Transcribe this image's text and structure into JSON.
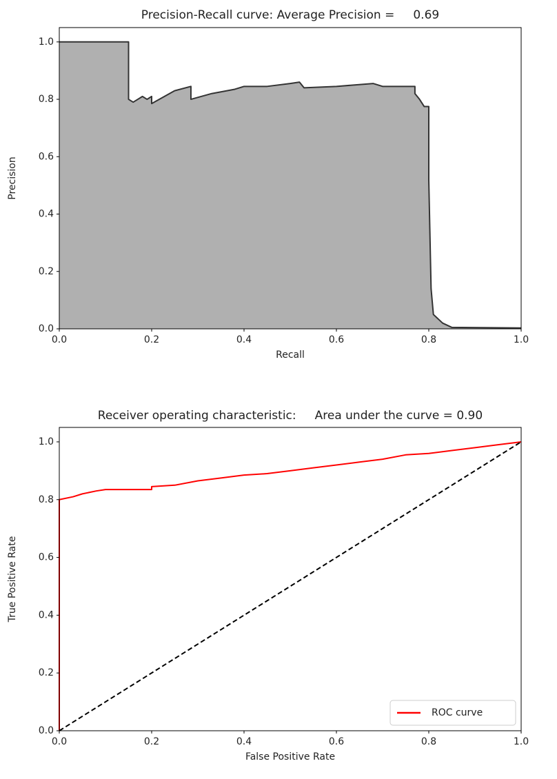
{
  "chart_data": [
    {
      "type": "area",
      "title": "Precision-Recall curve: Average Precision =     0.69",
      "xlabel": "Recall",
      "ylabel": "Precision",
      "xlim": [
        0,
        1
      ],
      "ylim": [
        0,
        1.05
      ],
      "xticks": [
        {
          "value": 0,
          "label": "0.0"
        },
        {
          "value": 0.2,
          "label": "0.2"
        },
        {
          "value": 0.4,
          "label": "0.4"
        },
        {
          "value": 0.6,
          "label": "0.6"
        },
        {
          "value": 0.8,
          "label": "0.8"
        },
        {
          "value": 1,
          "label": "1.0"
        }
      ],
      "yticks": [
        {
          "value": 0,
          "label": "0.0"
        },
        {
          "value": 0.2,
          "label": "0.2"
        },
        {
          "value": 0.4,
          "label": "0.4"
        },
        {
          "value": 0.6,
          "label": "0.6"
        },
        {
          "value": 0.8,
          "label": "0.8"
        },
        {
          "value": 1,
          "label": "1.0"
        }
      ],
      "series": [
        {
          "color": "#333333",
          "fill": "#b0b0b0",
          "x": [
            0,
            0.15,
            0.15,
            0.16,
            0.17,
            0.18,
            0.19,
            0.2,
            0.2,
            0.25,
            0.285,
            0.285,
            0.33,
            0.38,
            0.4,
            0.45,
            0.5,
            0.52,
            0.53,
            0.6,
            0.68,
            0.7,
            0.77,
            0.77,
            0.78,
            0.79,
            0.8,
            0.8,
            0.805,
            0.81,
            0.83,
            0.85,
            1.0
          ],
          "values": [
            1.0,
            1.0,
            0.8,
            0.79,
            0.8,
            0.81,
            0.8,
            0.81,
            0.785,
            0.83,
            0.845,
            0.8,
            0.82,
            0.835,
            0.845,
            0.845,
            0.855,
            0.86,
            0.84,
            0.845,
            0.855,
            0.845,
            0.845,
            0.82,
            0.8,
            0.775,
            0.775,
            0.52,
            0.14,
            0.05,
            0.02,
            0.005,
            0.003
          ]
        }
      ]
    },
    {
      "type": "line",
      "title": "Receiver operating characteristic:     Area under the curve = 0.90",
      "xlabel": "False Positive Rate",
      "ylabel": "True Positive Rate",
      "xlim": [
        0,
        1
      ],
      "ylim": [
        0,
        1.05
      ],
      "xticks": [
        {
          "value": 0,
          "label": "0.0"
        },
        {
          "value": 0.2,
          "label": "0.2"
        },
        {
          "value": 0.4,
          "label": "0.4"
        },
        {
          "value": 0.6,
          "label": "0.6"
        },
        {
          "value": 0.8,
          "label": "0.8"
        },
        {
          "value": 1,
          "label": "1.0"
        }
      ],
      "yticks": [
        {
          "value": 0,
          "label": "0.0"
        },
        {
          "value": 0.2,
          "label": "0.2"
        },
        {
          "value": 0.4,
          "label": "0.4"
        },
        {
          "value": 0.6,
          "label": "0.6"
        },
        {
          "value": 0.8,
          "label": "0.8"
        },
        {
          "value": 1,
          "label": "1.0"
        }
      ],
      "legend": "lower right",
      "series": [
        {
          "name": "ROC curve",
          "color": "#ff0000",
          "x": [
            0,
            0,
            0.03,
            0.05,
            0.08,
            0.1,
            0.2,
            0.2,
            0.25,
            0.3,
            0.35,
            0.4,
            0.45,
            0.5,
            0.55,
            0.6,
            0.65,
            0.7,
            0.75,
            0.8,
            0.85,
            0.9,
            0.95,
            1.0
          ],
          "values": [
            0,
            0.8,
            0.81,
            0.82,
            0.83,
            0.835,
            0.835,
            0.845,
            0.85,
            0.865,
            0.875,
            0.885,
            0.89,
            0.9,
            0.91,
            0.92,
            0.93,
            0.94,
            0.955,
            0.96,
            0.97,
            0.98,
            0.99,
            1.0
          ]
        },
        {
          "color": "#000000",
          "dash": true,
          "x": [
            0,
            1
          ],
          "values": [
            0,
            1
          ]
        }
      ]
    }
  ]
}
